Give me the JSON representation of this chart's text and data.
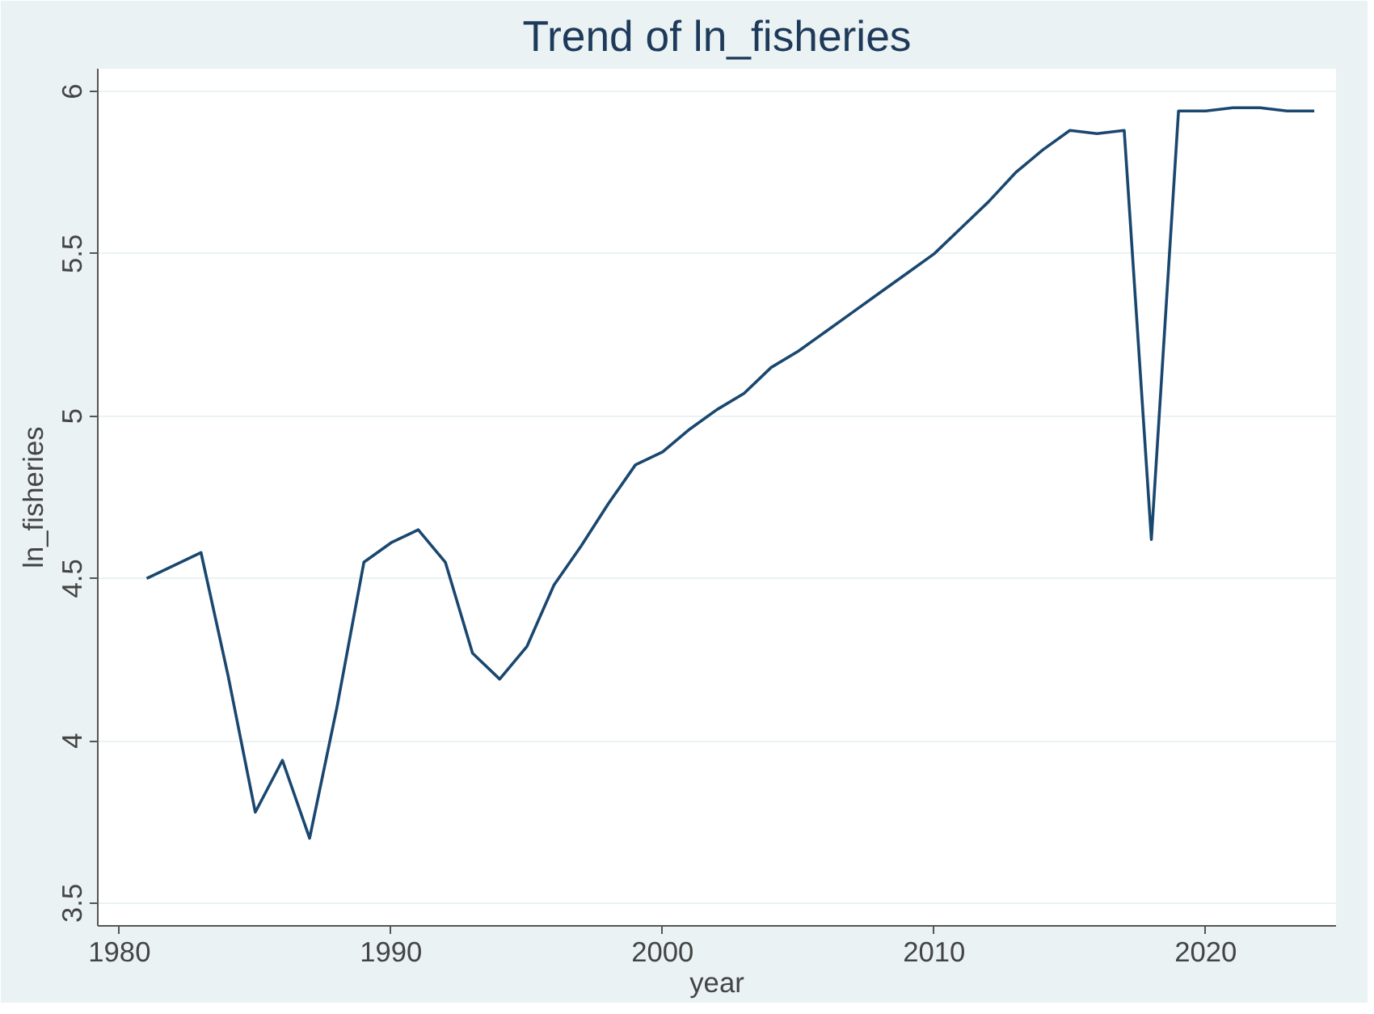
{
  "chart_data": {
    "type": "line",
    "title": "Trend of ln_fisheries",
    "xlabel": "year",
    "ylabel": "ln_fisheries",
    "x": [
      1981,
      1982,
      1983,
      1984,
      1985,
      1986,
      1987,
      1988,
      1989,
      1990,
      1991,
      1992,
      1993,
      1994,
      1995,
      1996,
      1997,
      1998,
      1999,
      2000,
      2001,
      2002,
      2003,
      2004,
      2005,
      2006,
      2007,
      2008,
      2009,
      2010,
      2011,
      2012,
      2013,
      2014,
      2015,
      2016,
      2017,
      2018,
      2019,
      2020,
      2021,
      2022,
      2023,
      2024
    ],
    "series": [
      {
        "color": "#1a476f",
        "values": [
          4.5,
          4.54,
          4.58,
          4.2,
          3.78,
          3.94,
          3.7,
          4.1,
          4.55,
          4.61,
          4.65,
          4.55,
          4.27,
          4.19,
          4.29,
          4.48,
          4.6,
          4.73,
          4.85,
          4.89,
          4.96,
          5.02,
          5.07,
          5.15,
          5.2,
          5.26,
          5.32,
          5.38,
          5.44,
          5.5,
          5.58,
          5.66,
          5.75,
          5.82,
          5.88,
          5.87,
          5.88,
          4.62,
          5.94,
          5.94,
          5.95,
          5.95,
          5.94,
          5.94
        ]
      }
    ],
    "xlim": [
      1979.2,
      2024.8
    ],
    "ylim": [
      3.43,
      6.07
    ],
    "xticks": [
      1980,
      1990,
      2000,
      2010,
      2020
    ],
    "yticks": [
      3.5,
      4,
      4.5,
      5,
      5.5,
      6
    ],
    "grid": "y",
    "marker": "none",
    "line_style": "solid"
  }
}
